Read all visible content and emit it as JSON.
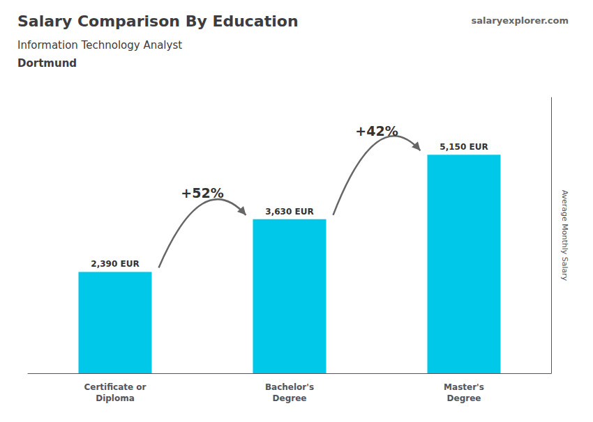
{
  "chart_data": {
    "type": "bar",
    "title": "Salary Comparison By Education",
    "subtitle": [
      "Information Technology Analyst",
      "Dortmund"
    ],
    "source": "salaryexplorer.com",
    "ylabel": "Average Monthly Salary",
    "categories": [
      "Certificate or\nDiploma",
      "Bachelor's\nDegree",
      "Master's\nDegree"
    ],
    "values": [
      2390,
      3630,
      5150
    ],
    "value_labels": [
      "2,390 EUR",
      "3,630 EUR",
      "5,150 EUR"
    ],
    "data_labels": true,
    "annotations": [
      "+52%",
      "+42%"
    ],
    "color": "#00c8e8",
    "ylim": [
      0,
      6500
    ],
    "tick_labels": "x",
    "grid": false
  }
}
